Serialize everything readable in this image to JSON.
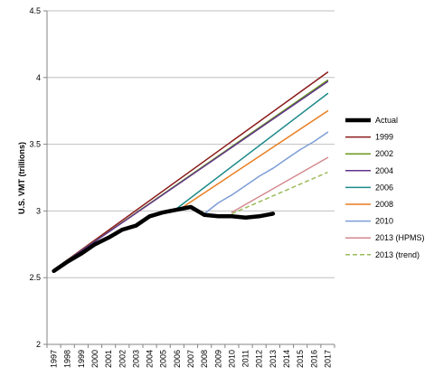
{
  "chart_data": {
    "type": "line",
    "title": "",
    "xlabel": "",
    "ylabel": "U.S. VMT (trillions)",
    "ylim": [
      2,
      4.5
    ],
    "yticks": [
      2,
      2.5,
      3,
      3.5,
      4,
      4.5
    ],
    "ytick_labels": [
      "2",
      "2.5",
      "3",
      "3.5",
      "4",
      "4.5"
    ],
    "x_categories": [
      "1997",
      "1998",
      "1999",
      "2000",
      "2001",
      "2002",
      "2003",
      "2004",
      "2005",
      "2006",
      "2007",
      "2008",
      "2009",
      "2010",
      "2011",
      "2012",
      "2013",
      "2014",
      "2015",
      "2016",
      "2017"
    ],
    "grid": "horizontal",
    "legend_position": "right",
    "colors": {
      "gridline": "#bfbfbf",
      "axis": "#868686"
    },
    "series": [
      {
        "name": "Actual",
        "color": "#000000",
        "style": "solid",
        "width": 4.5,
        "x": [
          1997,
          1998,
          1999,
          2000,
          2001,
          2002,
          2003,
          2004,
          2005,
          2006,
          2007,
          2008,
          2009,
          2010,
          2011,
          2012,
          2013
        ],
        "y": [
          2.55,
          2.62,
          2.68,
          2.75,
          2.8,
          2.86,
          2.89,
          2.96,
          2.99,
          3.01,
          3.03,
          2.97,
          2.96,
          2.96,
          2.95,
          2.96,
          2.98
        ]
      },
      {
        "name": "1999",
        "color": "#8b1a1a",
        "style": "solid",
        "width": 1.5,
        "x": [
          1997,
          2017
        ],
        "y": [
          2.56,
          4.04
        ]
      },
      {
        "name": "2002",
        "color": "#6a9a1f",
        "style": "solid",
        "width": 1.5,
        "x": [
          1997,
          2017
        ],
        "y": [
          2.56,
          3.98
        ]
      },
      {
        "name": "2004",
        "color": "#60338a",
        "style": "solid",
        "width": 1.5,
        "x": [
          1997,
          2017
        ],
        "y": [
          2.56,
          3.97
        ]
      },
      {
        "name": "2006",
        "color": "#1e8a8a",
        "style": "solid",
        "width": 1.5,
        "x": [
          2006,
          2017
        ],
        "y": [
          3.02,
          3.88
        ]
      },
      {
        "name": "2008",
        "color": "#e87d1e",
        "style": "solid",
        "width": 1.5,
        "x": [
          2006,
          2017
        ],
        "y": [
          3.0,
          3.75
        ]
      },
      {
        "name": "2010",
        "color": "#7d9dd6",
        "style": "solid",
        "width": 1.5,
        "x": [
          2008,
          2009,
          2010,
          2011,
          2012,
          2013,
          2014,
          2015,
          2016,
          2017
        ],
        "y": [
          2.98,
          3.06,
          3.12,
          3.19,
          3.26,
          3.32,
          3.39,
          3.46,
          3.52,
          3.59
        ]
      },
      {
        "name": "2013 (HPMS)",
        "color": "#d4898f",
        "style": "solid",
        "width": 1.5,
        "x": [
          2010,
          2017
        ],
        "y": [
          2.99,
          3.4
        ]
      },
      {
        "name": "2013 (trend)",
        "color": "#9bbb59",
        "style": "dashed",
        "width": 1.5,
        "x": [
          2010,
          2017
        ],
        "y": [
          2.98,
          3.29
        ]
      }
    ]
  }
}
